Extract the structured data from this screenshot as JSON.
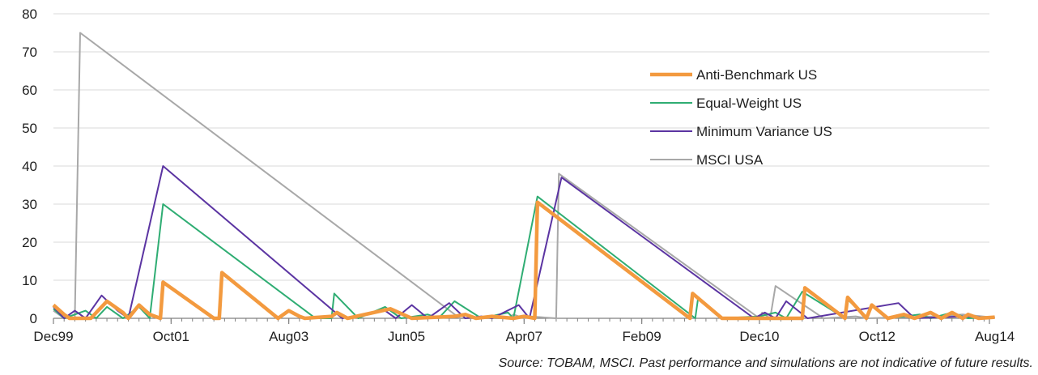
{
  "source_note": "Source: TOBAM, MSCI. Past performance and simulations are not indicative of future results.",
  "chart_data": {
    "type": "line",
    "title": "",
    "xlabel": "",
    "ylabel": "",
    "x_range": [
      0,
      175
    ],
    "ylim": [
      0,
      80
    ],
    "y_ticks": [
      0,
      10,
      20,
      30,
      40,
      50,
      60,
      70,
      80
    ],
    "x_tick_labels": [
      {
        "x": 0,
        "label": "Dec99"
      },
      {
        "x": 22,
        "label": "Oct01"
      },
      {
        "x": 44,
        "label": "Aug03"
      },
      {
        "x": 66,
        "label": "Jun05"
      },
      {
        "x": 88,
        "label": "Apr07"
      },
      {
        "x": 110,
        "label": "Feb09"
      },
      {
        "x": 132,
        "label": "Dec10"
      },
      {
        "x": 154,
        "label": "Oct12"
      },
      {
        "x": 176,
        "label": "Aug14"
      }
    ],
    "grid": "horizontal",
    "legend_position": "right",
    "series": [
      {
        "name": "Anti-Benchmark US",
        "color": "#f39a3f",
        "points": [
          [
            0,
            3.5
          ],
          [
            2,
            1
          ],
          [
            3,
            0
          ],
          [
            7,
            0
          ],
          [
            10,
            4.5
          ],
          [
            13,
            1.5
          ],
          [
            14,
            0
          ],
          [
            16,
            3.5
          ],
          [
            18,
            1
          ],
          [
            20,
            0
          ],
          [
            20.5,
            9.5
          ],
          [
            30,
            0
          ],
          [
            31,
            0
          ],
          [
            31.5,
            12
          ],
          [
            42,
            0
          ],
          [
            44,
            2
          ],
          [
            46,
            0.5
          ],
          [
            47,
            0
          ],
          [
            52,
            0.5
          ],
          [
            53,
            1.5
          ],
          [
            55,
            0
          ],
          [
            63,
            2.5
          ],
          [
            67,
            0
          ],
          [
            75,
            0.5
          ],
          [
            77,
            1
          ],
          [
            79,
            0
          ],
          [
            82,
            0.5
          ],
          [
            86,
            0
          ],
          [
            88,
            0.5
          ],
          [
            90,
            0
          ],
          [
            90.5,
            30.5
          ],
          [
            119,
            0
          ],
          [
            119.5,
            6.5
          ],
          [
            125,
            0
          ],
          [
            140,
            0
          ],
          [
            140.5,
            8
          ],
          [
            148,
            0
          ],
          [
            148.5,
            5.5
          ],
          [
            152,
            0
          ],
          [
            153,
            3.5
          ],
          [
            156,
            0
          ],
          [
            159,
            1
          ],
          [
            161,
            0
          ],
          [
            164,
            1.5
          ],
          [
            166,
            0
          ],
          [
            168,
            1.5
          ],
          [
            170,
            0
          ],
          [
            171,
            1
          ],
          [
            173,
            0
          ],
          [
            176,
            0.3
          ]
        ]
      },
      {
        "name": "Equal-Weight US",
        "color": "#2fad73",
        "points": [
          [
            0,
            2.5
          ],
          [
            2,
            0
          ],
          [
            6,
            2
          ],
          [
            8,
            0
          ],
          [
            10,
            3
          ],
          [
            13,
            0
          ],
          [
            16,
            3
          ],
          [
            18,
            0
          ],
          [
            20.5,
            30
          ],
          [
            49,
            0
          ],
          [
            52,
            0
          ],
          [
            52.5,
            6.5
          ],
          [
            57,
            0
          ],
          [
            62,
            3
          ],
          [
            65,
            0
          ],
          [
            70,
            1
          ],
          [
            72,
            0
          ],
          [
            75,
            4.5
          ],
          [
            80,
            0
          ],
          [
            85,
            1.5
          ],
          [
            86,
            0
          ],
          [
            90.5,
            32
          ],
          [
            120,
            0
          ],
          [
            120.5,
            5
          ],
          [
            125,
            0
          ],
          [
            132,
            0.5
          ],
          [
            135,
            1.5
          ],
          [
            137,
            0
          ],
          [
            140,
            7
          ],
          [
            148,
            0
          ],
          [
            148.5,
            5
          ],
          [
            152,
            0
          ],
          [
            153,
            3.5
          ],
          [
            156,
            0
          ],
          [
            162,
            1
          ],
          [
            164,
            0
          ],
          [
            168,
            1.5
          ],
          [
            171,
            0
          ],
          [
            176,
            0.3
          ]
        ]
      },
      {
        "name": "Minimum Variance US",
        "color": "#5b34a2",
        "points": [
          [
            0,
            3
          ],
          [
            2,
            0
          ],
          [
            4,
            2
          ],
          [
            6,
            0
          ],
          [
            9,
            6
          ],
          [
            12,
            2
          ],
          [
            14,
            0
          ],
          [
            20.5,
            40
          ],
          [
            54,
            0
          ],
          [
            62,
            2
          ],
          [
            64,
            0
          ],
          [
            67,
            3.5
          ],
          [
            70,
            0
          ],
          [
            74,
            4
          ],
          [
            77,
            0
          ],
          [
            80,
            0.5
          ],
          [
            82,
            0
          ],
          [
            87,
            3.5
          ],
          [
            89,
            0
          ],
          [
            95,
            37
          ],
          [
            131,
            0
          ],
          [
            133,
            1.5
          ],
          [
            135,
            0
          ],
          [
            137,
            4.5
          ],
          [
            141,
            0
          ],
          [
            158,
            4
          ],
          [
            161,
            0
          ],
          [
            170,
            0.5
          ],
          [
            176,
            0.2
          ]
        ]
      },
      {
        "name": "MSCI USA",
        "color": "#a8a8a8",
        "points": [
          [
            0,
            2
          ],
          [
            2,
            0
          ],
          [
            4,
            0
          ],
          [
            5,
            75
          ],
          [
            76,
            0
          ],
          [
            85,
            0
          ],
          [
            86,
            1
          ],
          [
            88,
            0
          ],
          [
            89,
            0.5
          ],
          [
            94,
            0
          ],
          [
            94.5,
            38
          ],
          [
            132,
            0
          ],
          [
            132.5,
            1.5
          ],
          [
            134,
            0
          ],
          [
            135,
            8.5
          ],
          [
            144,
            0
          ],
          [
            150,
            0.5
          ],
          [
            152,
            0
          ],
          [
            165,
            0.5
          ],
          [
            170,
            1
          ],
          [
            176,
            0.2
          ]
        ]
      }
    ]
  }
}
